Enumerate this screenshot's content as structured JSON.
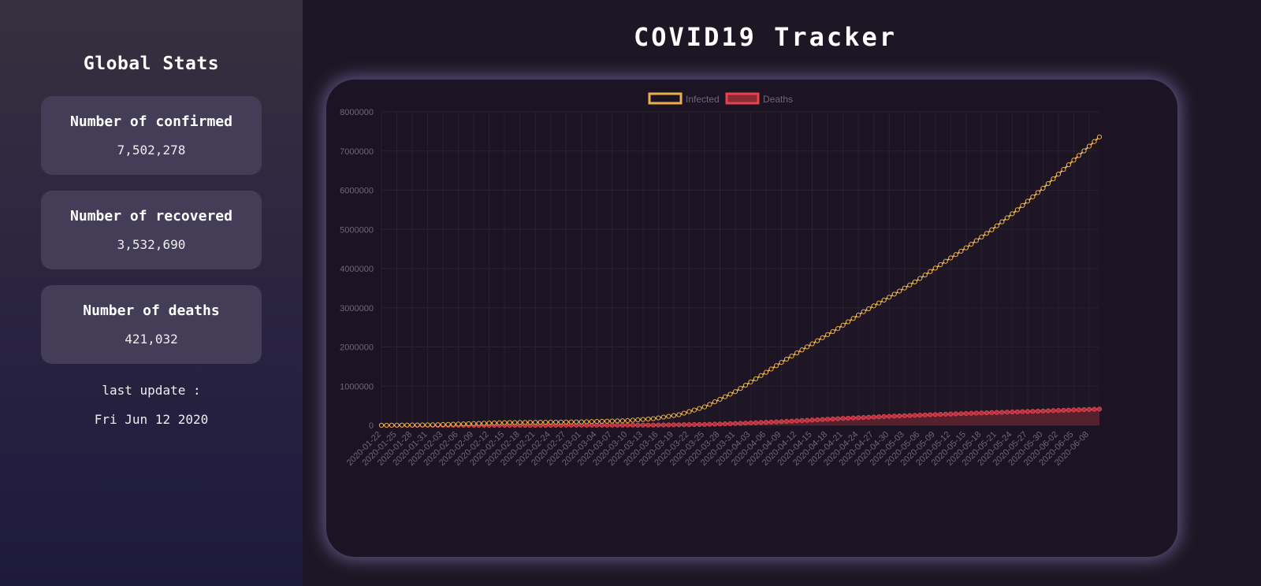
{
  "sidebar": {
    "title": "Global Stats",
    "cards": [
      {
        "label": "Number of confirmed",
        "value": "7,502,278"
      },
      {
        "label": "Number of recovered",
        "value": "3,532,690"
      },
      {
        "label": "Number of deaths",
        "value": "421,032"
      }
    ],
    "last_update_label": "last update :",
    "last_update_date": "Fri Jun 12 2020"
  },
  "main": {
    "title": "COVID19 Tracker"
  },
  "colors": {
    "infected": "#e8b04a",
    "deaths": "#e8424e",
    "deaths_fill": "#8e2a33",
    "tick_text": "#6f6778",
    "grid": "#2a2230"
  },
  "chart_data": {
    "type": "line",
    "title": "",
    "xlabel": "",
    "ylabel": "",
    "ylim": [
      0,
      8000000
    ],
    "yticks": [
      "0",
      "1000000",
      "2000000",
      "3000000",
      "4000000",
      "5000000",
      "6000000",
      "7000000",
      "8000000"
    ],
    "x_start": "2020-01-22",
    "x_end": "2020-06-10",
    "xtick_labels": [
      "2020-01-22",
      "2020-01-25",
      "2020-01-28",
      "2020-01-31",
      "2020-02-03",
      "2020-02-06",
      "2020-02-09",
      "2020-02-12",
      "2020-02-15",
      "2020-02-18",
      "2020-02-21",
      "2020-02-24",
      "2020-02-27",
      "2020-03-01",
      "2020-03-04",
      "2020-03-07",
      "2020-03-10",
      "2020-03-13",
      "2020-03-16",
      "2020-03-19",
      "2020-03-22",
      "2020-03-25",
      "2020-03-28",
      "2020-03-31",
      "2020-04-03",
      "2020-04-06",
      "2020-04-09",
      "2020-04-12",
      "2020-04-15",
      "2020-04-18",
      "2020-04-21",
      "2020-04-24",
      "2020-04-27",
      "2020-04-30",
      "2020-05-03",
      "2020-05-06",
      "2020-05-09",
      "2020-05-12",
      "2020-05-15",
      "2020-05-18",
      "2020-05-21",
      "2020-05-24",
      "2020-05-27",
      "2020-05-30",
      "2020-06-02",
      "2020-06-05",
      "2020-06-08"
    ],
    "legend_placement": "top",
    "grid": true,
    "series": [
      {
        "name": "Infected",
        "points": [
          [
            "2020-01-22",
            555
          ],
          [
            "2020-02-01",
            12000
          ],
          [
            "2020-02-15",
            69000
          ],
          [
            "2020-03-01",
            88000
          ],
          [
            "2020-03-10",
            120000
          ],
          [
            "2020-03-15",
            170000
          ],
          [
            "2020-03-20",
            270000
          ],
          [
            "2020-03-25",
            470000
          ],
          [
            "2020-03-31",
            860000
          ],
          [
            "2020-04-05",
            1270000
          ],
          [
            "2020-04-10",
            1690000
          ],
          [
            "2020-04-15",
            2080000
          ],
          [
            "2020-04-20",
            2470000
          ],
          [
            "2020-04-25",
            2900000
          ],
          [
            "2020-04-30",
            3270000
          ],
          [
            "2020-05-05",
            3660000
          ],
          [
            "2020-05-10",
            4100000
          ],
          [
            "2020-05-15",
            4530000
          ],
          [
            "2020-05-20",
            4990000
          ],
          [
            "2020-05-25",
            5500000
          ],
          [
            "2020-05-30",
            6050000
          ],
          [
            "2020-06-04",
            6650000
          ],
          [
            "2020-06-10",
            7360000
          ]
        ]
      },
      {
        "name": "Deaths",
        "points": [
          [
            "2020-01-22",
            17
          ],
          [
            "2020-02-15",
            1500
          ],
          [
            "2020-03-01",
            3000
          ],
          [
            "2020-03-15",
            6500
          ],
          [
            "2020-03-25",
            22000
          ],
          [
            "2020-04-01",
            50000
          ],
          [
            "2020-04-10",
            100000
          ],
          [
            "2020-04-20",
            170000
          ],
          [
            "2020-04-30",
            230000
          ],
          [
            "2020-05-10",
            280000
          ],
          [
            "2020-05-20",
            325000
          ],
          [
            "2020-05-31",
            370000
          ],
          [
            "2020-06-10",
            415000
          ]
        ]
      }
    ]
  }
}
